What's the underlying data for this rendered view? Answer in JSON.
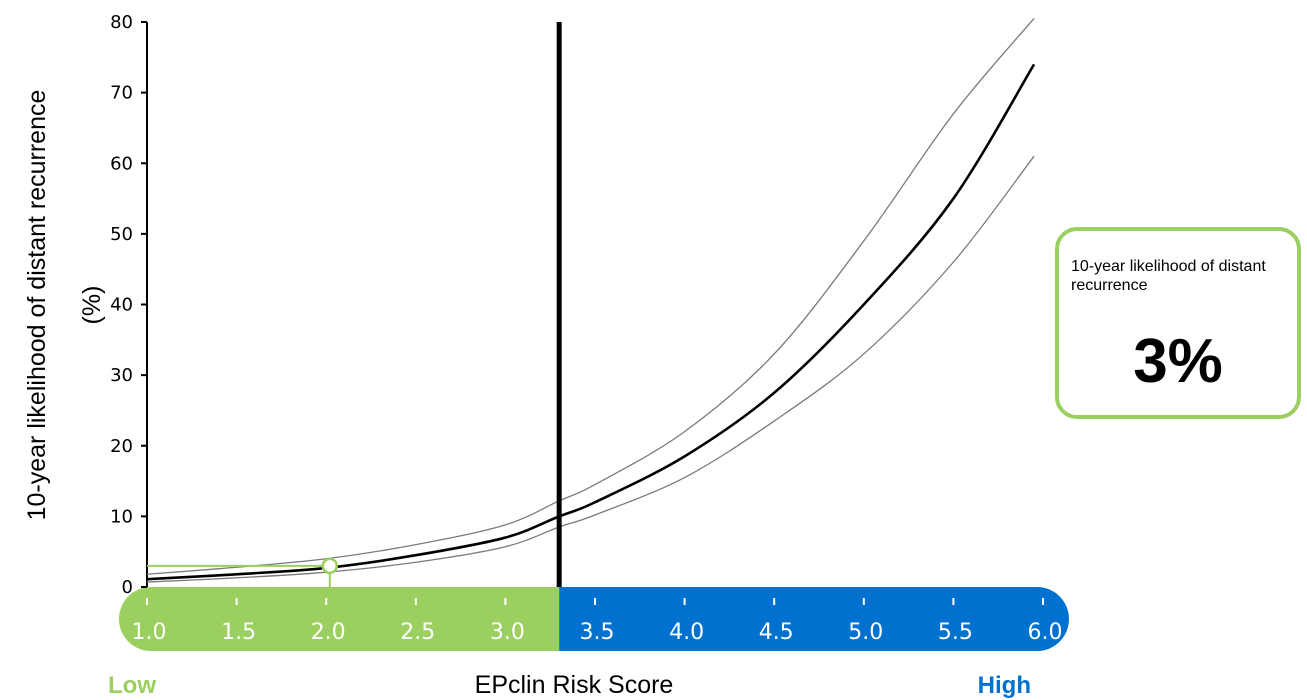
{
  "chart_data": {
    "type": "line",
    "ylabel_line1": "10-year likelihood of distant recurrence",
    "ylabel_line2": "(%)",
    "xlabel": "EPclin Risk Score",
    "xlim": [
      1.0,
      6.0
    ],
    "ylim": [
      0,
      80
    ],
    "yticks": [
      0,
      10,
      20,
      30,
      40,
      50,
      60,
      70,
      80
    ],
    "xticks": [
      "1.0",
      "1.5",
      "2.0",
      "2.5",
      "3.0",
      "3.5",
      "4.0",
      "4.5",
      "5.0",
      "5.5",
      "6.0"
    ],
    "x": [
      1.0,
      1.5,
      2.0,
      2.5,
      3.0,
      3.3,
      3.5,
      4.0,
      4.5,
      5.0,
      5.5,
      5.95
    ],
    "series": [
      {
        "role": "estimate",
        "values": [
          1.1,
          1.8,
          2.7,
          4.5,
          7.0,
          10.0,
          12.0,
          18.5,
          27.5,
          40.0,
          55.0,
          74.0
        ]
      },
      {
        "role": "upper-ci",
        "values": [
          1.8,
          2.8,
          4.0,
          6.0,
          8.8,
          12.2,
          14.5,
          22.0,
          33.0,
          49.0,
          67.0,
          80.5
        ]
      },
      {
        "role": "lower-ci",
        "values": [
          0.7,
          1.3,
          2.1,
          3.5,
          5.7,
          8.5,
          10.2,
          15.5,
          23.5,
          33.0,
          46.0,
          61.0
        ]
      }
    ],
    "threshold_x": 3.3,
    "marker": {
      "x": 2.02,
      "y": 3
    },
    "low_label": "Low",
    "high_label": "High",
    "low_color": "#9bcf5f",
    "high_color": "#0071ce"
  },
  "result": {
    "label": "10-year likelihood of distant recurrence",
    "value": "3%"
  }
}
